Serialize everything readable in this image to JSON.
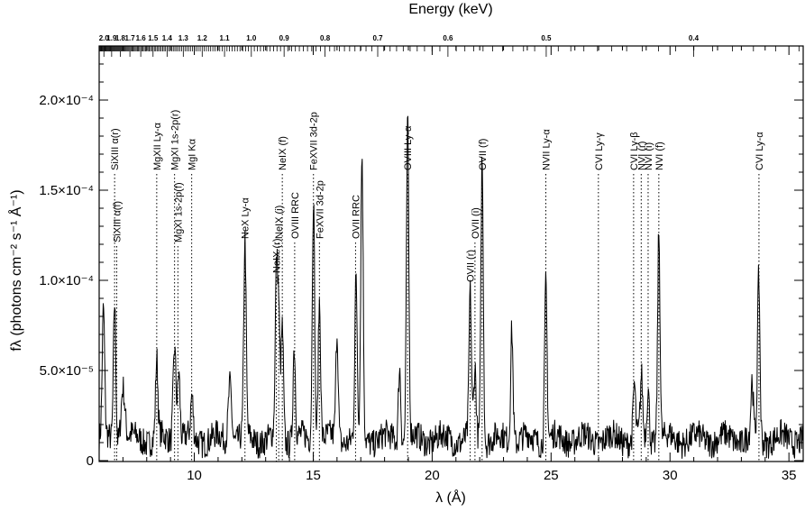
{
  "chart_data": {
    "type": "line",
    "title": "",
    "xlabel": "λ (Å)",
    "ylabel": "fλ (photons cm⁻² s⁻¹ Å⁻¹)",
    "top_axis_label": "Energy (keV)",
    "xlim": [
      6.0,
      35.6
    ],
    "ylim": [
      -5e-07,
      0.00023
    ],
    "x_ticks": [
      10,
      15,
      20,
      25,
      30,
      35
    ],
    "x_tick_labels": [
      "10",
      "15",
      "20",
      "25",
      "30",
      "35"
    ],
    "y_ticks": [
      0,
      5e-05,
      0.0001,
      0.00015,
      0.0002
    ],
    "y_tick_labels": [
      "0",
      "5.0×10⁻⁵",
      "1.0×10⁻⁴",
      "1.5×10⁻⁴",
      "2.0×10⁻⁴"
    ],
    "top_ticks_kev": [
      2.0,
      1.9,
      1.8,
      1.7,
      1.6,
      1.5,
      1.4,
      1.3,
      1.2,
      1.1,
      1.0,
      0.9,
      0.8,
      0.7,
      0.6,
      0.5,
      0.4
    ],
    "top_tick_labels": [
      "2.0",
      "1.9",
      "1.8",
      "1.7",
      "1.6",
      "1.5",
      "1.4",
      "1.3",
      "1.2",
      "1.1",
      "1.0",
      "0.9",
      "0.8",
      "0.7",
      "0.6",
      "0.5",
      "0.4"
    ],
    "grid": false,
    "background_level": 1.2e-05,
    "series": [
      {
        "line_color": "#000000",
        "peaks": [
          {
            "x": 6.18,
            "y": 7e-05,
            "w": 0.05
          },
          {
            "x": 6.65,
            "y": 7.8e-05,
            "w": 0.05
          },
          {
            "x": 7.0,
            "y": 3e-05,
            "w": 0.08
          },
          {
            "x": 8.42,
            "y": 4.3e-05,
            "w": 0.05
          },
          {
            "x": 9.17,
            "y": 5.4e-05,
            "w": 0.06
          },
          {
            "x": 9.35,
            "y": 3.8e-05,
            "w": 0.05
          },
          {
            "x": 9.9,
            "y": 2.2e-05,
            "w": 0.05
          },
          {
            "x": 11.5,
            "y": 3.3e-05,
            "w": 0.07
          },
          {
            "x": 12.13,
            "y": 0.000108,
            "w": 0.05
          },
          {
            "x": 13.45,
            "y": 8.8e-05,
            "w": 0.05
          },
          {
            "x": 13.55,
            "y": 6.5e-05,
            "w": 0.05
          },
          {
            "x": 13.7,
            "y": 6.3e-05,
            "w": 0.05
          },
          {
            "x": 14.2,
            "y": 5.2e-05,
            "w": 0.05
          },
          {
            "x": 15.01,
            "y": 0.000136,
            "w": 0.05
          },
          {
            "x": 15.26,
            "y": 7.8e-05,
            "w": 0.05
          },
          {
            "x": 16.0,
            "y": 6e-05,
            "w": 0.05
          },
          {
            "x": 16.8,
            "y": 8.7e-05,
            "w": 0.05
          },
          {
            "x": 17.05,
            "y": 0.000156,
            "w": 0.05
          },
          {
            "x": 18.63,
            "y": 4.2e-05,
            "w": 0.05
          },
          {
            "x": 18.97,
            "y": 0.000176,
            "w": 0.05
          },
          {
            "x": 21.6,
            "y": 7.9e-05,
            "w": 0.05
          },
          {
            "x": 21.8,
            "y": 3.8e-05,
            "w": 0.05
          },
          {
            "x": 22.1,
            "y": 0.000158,
            "w": 0.05
          },
          {
            "x": 23.35,
            "y": 6.3e-05,
            "w": 0.05
          },
          {
            "x": 24.78,
            "y": 8.8e-05,
            "w": 0.05
          },
          {
            "x": 28.5,
            "y": 3e-05,
            "w": 0.05
          },
          {
            "x": 28.8,
            "y": 3.3e-05,
            "w": 0.05
          },
          {
            "x": 29.08,
            "y": 2.8e-05,
            "w": 0.05
          },
          {
            "x": 29.53,
            "y": 0.000116,
            "w": 0.05
          },
          {
            "x": 33.73,
            "y": 9e-05,
            "w": 0.05
          },
          {
            "x": 33.45,
            "y": 3e-05,
            "w": 0.05
          }
        ]
      }
    ],
    "line_ids": [
      {
        "label": "SiXIII α(r)",
        "x": 6.65,
        "label_y": 0.00016,
        "anchor": "bottom"
      },
      {
        "label": "SiXIII α(f)",
        "x": 6.74,
        "label_y": 0.00012,
        "anchor": "bottom"
      },
      {
        "label": "MgXII Ly-α",
        "x": 8.42,
        "label_y": 0.00016,
        "anchor": "bottom"
      },
      {
        "label": "MgXI 1s-2p(r)",
        "x": 9.17,
        "label_y": 0.00016,
        "anchor": "bottom"
      },
      {
        "label": "MgXI 1s-2p(f)",
        "x": 9.31,
        "label_y": 0.00012,
        "anchor": "bottom"
      },
      {
        "label": "MgI Kα",
        "x": 9.89,
        "label_y": 0.00016,
        "anchor": "bottom"
      },
      {
        "label": "NeX Ly-α",
        "x": 12.13,
        "label_y": 0.000122,
        "anchor": "bottom"
      },
      {
        "label": "NeIX (r)",
        "x": 13.45,
        "label_y": 0.000103,
        "anchor": "bottom"
      },
      {
        "label": "NeIX (i)",
        "x": 13.55,
        "label_y": 0.000122,
        "anchor": "bottom"
      },
      {
        "label": "NeIX (f)",
        "x": 13.7,
        "label_y": 0.00016,
        "anchor": "bottom"
      },
      {
        "label": "OVIII RRC",
        "x": 14.22,
        "label_y": 0.000122,
        "anchor": "bottom"
      },
      {
        "label": "FeXVII 3d-2p",
        "x": 15.01,
        "label_y": 0.00016,
        "anchor": "bottom"
      },
      {
        "label": "FeXVII 3d-2p",
        "x": 15.26,
        "label_y": 0.000122,
        "anchor": "bottom"
      },
      {
        "label": "OVII RRC",
        "x": 16.78,
        "label_y": 0.000122,
        "anchor": "bottom"
      },
      {
        "label": "OVIII Ly-α",
        "x": 18.97,
        "label_y": 0.00016,
        "anchor": "bottom"
      },
      {
        "label": "OVII (r)",
        "x": 21.6,
        "label_y": 9.8e-05,
        "anchor": "bottom"
      },
      {
        "label": "OVII (i)",
        "x": 21.8,
        "label_y": 0.000122,
        "anchor": "bottom"
      },
      {
        "label": "OVII (f)",
        "x": 22.1,
        "label_y": 0.00016,
        "anchor": "bottom"
      },
      {
        "label": "NVII Ly-α",
        "x": 24.78,
        "label_y": 0.00016,
        "anchor": "bottom"
      },
      {
        "label": "CVI Ly-γ",
        "x": 26.99,
        "label_y": 0.00016,
        "anchor": "bottom"
      },
      {
        "label": "CVI Ly-β",
        "x": 28.47,
        "label_y": 0.00016,
        "anchor": "bottom"
      },
      {
        "label": "NVI (r)",
        "x": 28.79,
        "label_y": 0.00016,
        "anchor": "bottom"
      },
      {
        "label": "NVI (i)",
        "x": 29.08,
        "label_y": 0.00016,
        "anchor": "bottom"
      },
      {
        "label": "NVI (f)",
        "x": 29.53,
        "label_y": 0.00016,
        "anchor": "bottom"
      },
      {
        "label": "CVI Ly-α",
        "x": 33.74,
        "label_y": 0.00016,
        "anchor": "bottom"
      }
    ]
  }
}
